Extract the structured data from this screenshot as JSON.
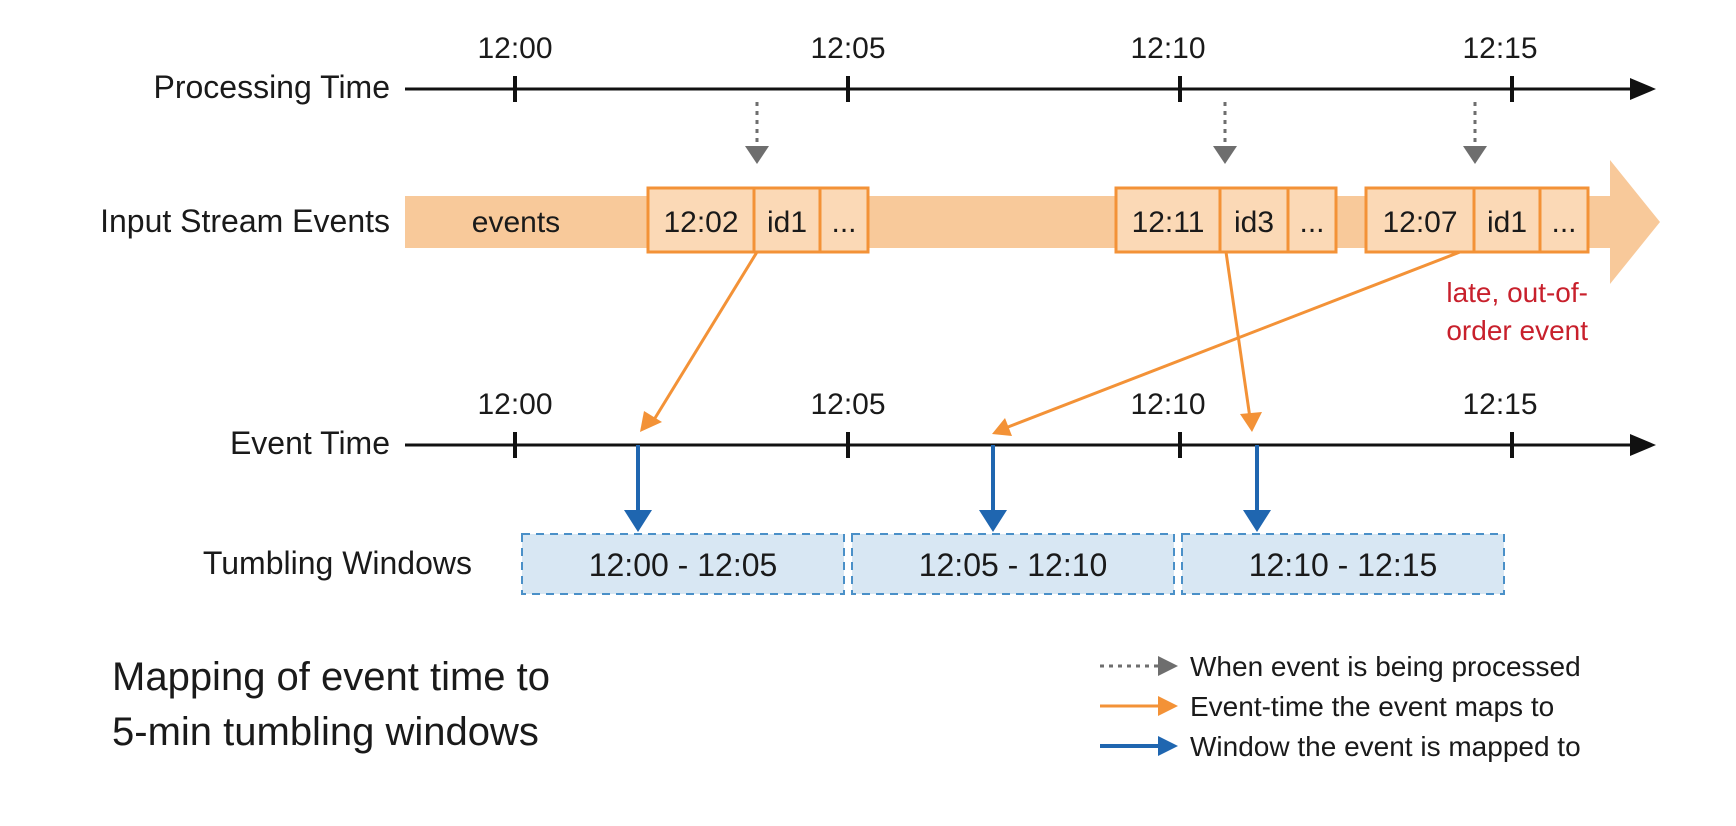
{
  "colors": {
    "axis": "#111111",
    "stream_band": "#f8c99a",
    "event_border": "#f39237",
    "event_arrow": "#f39237",
    "window_arrow": "#1f66b0",
    "window_fill": "#d8e7f3",
    "window_border": "#4a90c8",
    "process_arrow": "#6e6e6e",
    "late_text": "#c8202c"
  },
  "processing_axis": {
    "label": "Processing Time",
    "ticks": [
      "12:00",
      "12:05",
      "12:10",
      "12:15"
    ]
  },
  "input_stream": {
    "label": "Input Stream Events",
    "band_text": "events",
    "events": [
      {
        "time": "12:02",
        "id": "id1",
        "more": "..."
      },
      {
        "time": "12:11",
        "id": "id3",
        "more": "..."
      },
      {
        "time": "12:07",
        "id": "id1",
        "more": "..."
      }
    ],
    "late_note": [
      "late, out-of-",
      "order event"
    ]
  },
  "event_axis": {
    "label": "Event Time",
    "ticks": [
      "12:00",
      "12:05",
      "12:10",
      "12:15"
    ]
  },
  "tumbling_windows": {
    "label": "Tumbling Windows",
    "windows": [
      "12:00 - 12:05",
      "12:05 - 12:10",
      "12:10 - 12:15"
    ]
  },
  "title": [
    "Mapping of event time to",
    "5-min tumbling windows"
  ],
  "legend": [
    {
      "kind": "dotted-gray-arrow",
      "text": "When event is being processed"
    },
    {
      "kind": "orange-arrow",
      "text": "Event-time the event maps to"
    },
    {
      "kind": "blue-arrow",
      "text": "Window the event is mapped to"
    }
  ]
}
